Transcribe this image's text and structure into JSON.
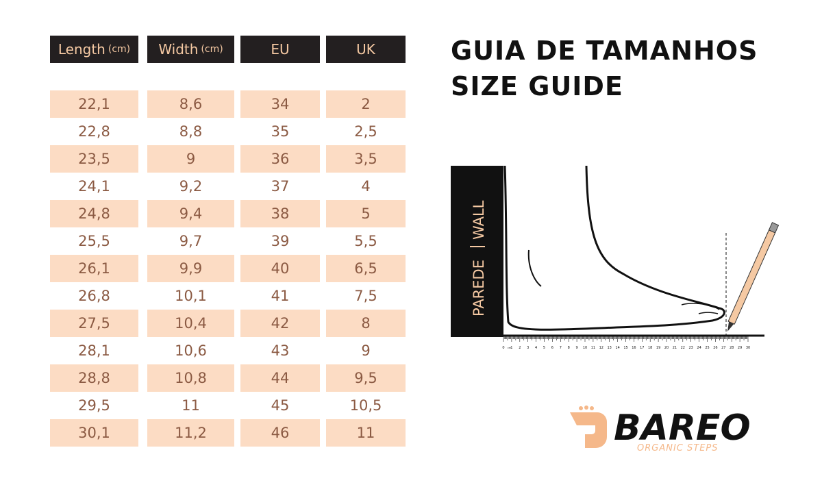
{
  "table": {
    "headers": [
      {
        "label": "Length",
        "unit": "(cm)"
      },
      {
        "label": "Width",
        "unit": "(cm)"
      },
      {
        "label": "EU"
      },
      {
        "label": "UK"
      }
    ],
    "rows": [
      [
        "22,1",
        "8,6",
        "34",
        "2"
      ],
      [
        "22,8",
        "8,8",
        "35",
        "2,5"
      ],
      [
        "23,5",
        "9",
        "36",
        "3,5"
      ],
      [
        "24,1",
        "9,2",
        "37",
        "4"
      ],
      [
        "24,8",
        "9,4",
        "38",
        "5"
      ],
      [
        "25,5",
        "9,7",
        "39",
        "5,5"
      ],
      [
        "26,1",
        "9,9",
        "40",
        "6,5"
      ],
      [
        "26,8",
        "10,1",
        "41",
        "7,5"
      ],
      [
        "27,5",
        "10,4",
        "42",
        "8"
      ],
      [
        "28,1",
        "10,6",
        "43",
        "9"
      ],
      [
        "28,8",
        "10,8",
        "44",
        "9,5"
      ],
      [
        "29,5",
        "11",
        "45",
        "10,5"
      ],
      [
        "30,1",
        "11,2",
        "46",
        "11"
      ]
    ]
  },
  "header": {
    "title": [
      "GUIA DE TAMANHOS",
      "SIZE GUIDE"
    ]
  },
  "diagram": {
    "wall": [
      "PAREDE",
      "WALL"
    ],
    "ruler": {
      "unit": "cm",
      "labels": [
        "0",
        "1",
        "2",
        "3",
        "4",
        "5",
        "6",
        "7",
        "8",
        "9",
        "10",
        "11",
        "12",
        "13",
        "14",
        "15",
        "16",
        "17",
        "18",
        "19",
        "20",
        "21",
        "22",
        "23",
        "24",
        "25",
        "26",
        "27",
        "28",
        "29",
        "30"
      ]
    }
  },
  "logo": {
    "name": "BAREO",
    "tagline": "ORGANIC STEPS"
  }
}
